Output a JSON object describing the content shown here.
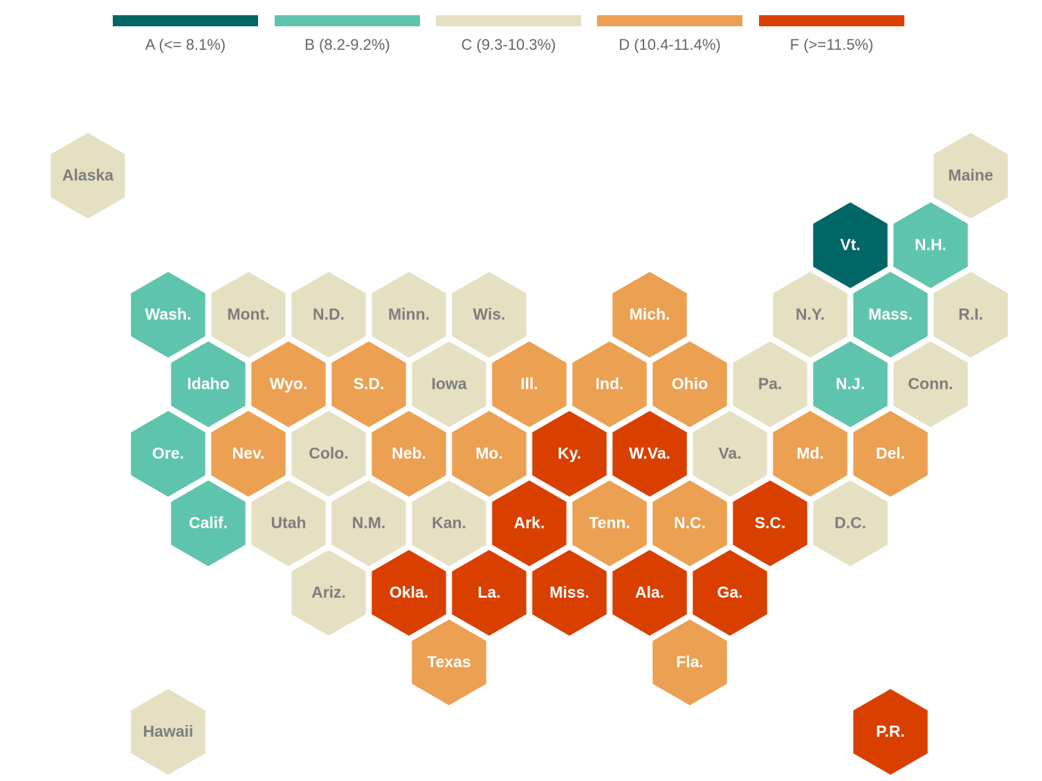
{
  "chart_data": {
    "type": "hex-tile-map",
    "title": "",
    "legend": [
      {
        "grade": "A",
        "label": "A (<= 8.1%)",
        "color": "#006666"
      },
      {
        "grade": "B",
        "label": "B (8.2-9.2%)",
        "color": "#5fc4ad"
      },
      {
        "grade": "C",
        "label": "C (9.3-10.3%)",
        "color": "#e6e0c2"
      },
      {
        "grade": "D",
        "label": "D (10.4-11.4%)",
        "color": "#eba052"
      },
      {
        "grade": "F",
        "label": "F (>=11.5%)",
        "color": "#d94000"
      }
    ],
    "tiles": [
      {
        "label": "Alaska",
        "grade": "C",
        "row": 0,
        "col": -1
      },
      {
        "label": "Maine",
        "grade": "C",
        "row": 0,
        "col": 10
      },
      {
        "label": "Vt.",
        "grade": "A",
        "row": 1,
        "col": 8.5
      },
      {
        "label": "N.H.",
        "grade": "B",
        "row": 1,
        "col": 9.5
      },
      {
        "label": "Wash.",
        "grade": "B",
        "row": 2,
        "col": 0
      },
      {
        "label": "Mont.",
        "grade": "C",
        "row": 2,
        "col": 1
      },
      {
        "label": "N.D.",
        "grade": "C",
        "row": 2,
        "col": 2
      },
      {
        "label": "Minn.",
        "grade": "C",
        "row": 2,
        "col": 3
      },
      {
        "label": "Wis.",
        "grade": "C",
        "row": 2,
        "col": 4
      },
      {
        "label": "Mich.",
        "grade": "D",
        "row": 2,
        "col": 6
      },
      {
        "label": "N.Y.",
        "grade": "C",
        "row": 2,
        "col": 8
      },
      {
        "label": "Mass.",
        "grade": "B",
        "row": 2,
        "col": 9
      },
      {
        "label": "R.I.",
        "grade": "C",
        "row": 2,
        "col": 10
      },
      {
        "label": "Idaho",
        "grade": "B",
        "row": 3,
        "col": 0.5
      },
      {
        "label": "Wyo.",
        "grade": "D",
        "row": 3,
        "col": 1.5
      },
      {
        "label": "S.D.",
        "grade": "D",
        "row": 3,
        "col": 2.5
      },
      {
        "label": "Iowa",
        "grade": "C",
        "row": 3,
        "col": 3.5
      },
      {
        "label": "Ill.",
        "grade": "D",
        "row": 3,
        "col": 4.5
      },
      {
        "label": "Ind.",
        "grade": "D",
        "row": 3,
        "col": 5.5
      },
      {
        "label": "Ohio",
        "grade": "D",
        "row": 3,
        "col": 6.5
      },
      {
        "label": "Pa.",
        "grade": "C",
        "row": 3,
        "col": 7.5
      },
      {
        "label": "N.J.",
        "grade": "B",
        "row": 3,
        "col": 8.5
      },
      {
        "label": "Conn.",
        "grade": "C",
        "row": 3,
        "col": 9.5
      },
      {
        "label": "Ore.",
        "grade": "B",
        "row": 4,
        "col": 0
      },
      {
        "label": "Nev.",
        "grade": "D",
        "row": 4,
        "col": 1
      },
      {
        "label": "Colo.",
        "grade": "C",
        "row": 4,
        "col": 2
      },
      {
        "label": "Neb.",
        "grade": "D",
        "row": 4,
        "col": 3
      },
      {
        "label": "Mo.",
        "grade": "D",
        "row": 4,
        "col": 4
      },
      {
        "label": "Ky.",
        "grade": "F",
        "row": 4,
        "col": 5
      },
      {
        "label": "W.Va.",
        "grade": "F",
        "row": 4,
        "col": 6
      },
      {
        "label": "Va.",
        "grade": "C",
        "row": 4,
        "col": 7
      },
      {
        "label": "Md.",
        "grade": "D",
        "row": 4,
        "col": 8
      },
      {
        "label": "Del.",
        "grade": "D",
        "row": 4,
        "col": 9
      },
      {
        "label": "Calif.",
        "grade": "B",
        "row": 5,
        "col": 0.5
      },
      {
        "label": "Utah",
        "grade": "C",
        "row": 5,
        "col": 1.5
      },
      {
        "label": "N.M.",
        "grade": "C",
        "row": 5,
        "col": 2.5
      },
      {
        "label": "Kan.",
        "grade": "C",
        "row": 5,
        "col": 3.5
      },
      {
        "label": "Ark.",
        "grade": "F",
        "row": 5,
        "col": 4.5
      },
      {
        "label": "Tenn.",
        "grade": "D",
        "row": 5,
        "col": 5.5
      },
      {
        "label": "N.C.",
        "grade": "D",
        "row": 5,
        "col": 6.5
      },
      {
        "label": "S.C.",
        "grade": "F",
        "row": 5,
        "col": 7.5
      },
      {
        "label": "D.C.",
        "grade": "C",
        "row": 5,
        "col": 8.5
      },
      {
        "label": "Ariz.",
        "grade": "C",
        "row": 6,
        "col": 2
      },
      {
        "label": "Okla.",
        "grade": "F",
        "row": 6,
        "col": 3
      },
      {
        "label": "La.",
        "grade": "F",
        "row": 6,
        "col": 4
      },
      {
        "label": "Miss.",
        "grade": "F",
        "row": 6,
        "col": 5
      },
      {
        "label": "Ala.",
        "grade": "F",
        "row": 6,
        "col": 6
      },
      {
        "label": "Ga.",
        "grade": "F",
        "row": 6,
        "col": 7
      },
      {
        "label": "Texas",
        "grade": "D",
        "row": 7,
        "col": 3.5
      },
      {
        "label": "Fla.",
        "grade": "D",
        "row": 7,
        "col": 6.5
      },
      {
        "label": "Hawaii",
        "grade": "C",
        "row": 8,
        "col": 0
      },
      {
        "label": "P.R.",
        "grade": "F",
        "row": 8,
        "col": 9
      }
    ]
  }
}
